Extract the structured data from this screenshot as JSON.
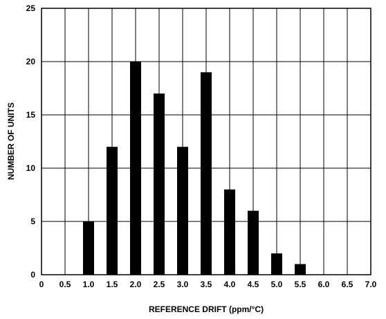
{
  "chart_data": {
    "type": "bar",
    "xlabel": "REFERENCE DRIFT (ppm/°C)",
    "ylabel": "NUMBER OF UNITS",
    "x_ticks": [
      "0",
      "0.5",
      "1.0",
      "1.5",
      "2.0",
      "2.5",
      "3.0",
      "3.5",
      "4.0",
      "4.5",
      "5.0",
      "5.5",
      "6.0",
      "6.5",
      "7.0"
    ],
    "y_ticks": [
      "0",
      "5",
      "10",
      "15",
      "20",
      "25"
    ],
    "xlim": [
      0,
      7
    ],
    "ylim": [
      0,
      25
    ],
    "grid": true,
    "bars": [
      {
        "x": 1.0,
        "value": 5
      },
      {
        "x": 1.5,
        "value": 12
      },
      {
        "x": 2.0,
        "value": 20
      },
      {
        "x": 2.5,
        "value": 17
      },
      {
        "x": 3.0,
        "value": 12
      },
      {
        "x": 3.5,
        "value": 19
      },
      {
        "x": 4.0,
        "value": 8
      },
      {
        "x": 4.5,
        "value": 6
      },
      {
        "x": 5.0,
        "value": 2
      },
      {
        "x": 5.5,
        "value": 1
      }
    ],
    "bar_color": "#000000"
  }
}
